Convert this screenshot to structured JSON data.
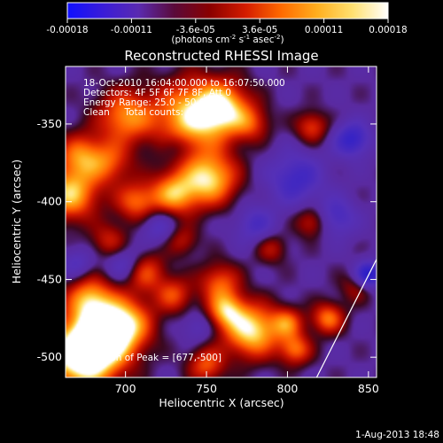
{
  "colorbar": {
    "ticks": [
      "-0.00018",
      "-0.00011",
      "-3.6e-05",
      "3.6e-05",
      "0.00011",
      "0.00018"
    ],
    "unit_main": "(photons cm",
    "unit_exp1": "-2",
    "unit_mid": " s",
    "unit_exp2": "-1",
    "unit_tail": " asec",
    "unit_exp3": "-2",
    "unit_close": ")",
    "stops": [
      "#1010ff",
      "#3a1cd8",
      "#5a2ab0",
      "#5a0a3a",
      "#8a0000",
      "#d41c00",
      "#ff6a00",
      "#ffae1e",
      "#ffe070",
      "#ffffff"
    ]
  },
  "chart_data": {
    "type": "heatmap",
    "title": "Reconstructed RHESSI Image",
    "xlabel": "Heliocentric X (arcsec)",
    "ylabel": "Heliocentric Y (arcsec)",
    "xlim": [
      663,
      855
    ],
    "ylim": [
      -513,
      -313
    ],
    "xticks": [
      700,
      750,
      800,
      850
    ],
    "yticks": [
      -350,
      -400,
      -450,
      -500
    ],
    "blobs": [
      {
        "x": 672,
        "y": -500,
        "r": 16,
        "v": 1.0
      },
      {
        "x": 684,
        "y": -488,
        "r": 14,
        "v": 0.9
      },
      {
        "x": 700,
        "y": -478,
        "r": 12,
        "v": 0.75
      },
      {
        "x": 678,
        "y": -462,
        "r": 10,
        "v": 0.7
      },
      {
        "x": 666,
        "y": -395,
        "r": 12,
        "v": 0.85
      },
      {
        "x": 672,
        "y": -370,
        "r": 10,
        "v": 0.6
      },
      {
        "x": 700,
        "y": -345,
        "r": 12,
        "v": 0.7
      },
      {
        "x": 740,
        "y": -345,
        "r": 16,
        "v": 0.85
      },
      {
        "x": 760,
        "y": -340,
        "r": 12,
        "v": 0.8
      },
      {
        "x": 752,
        "y": -385,
        "r": 12,
        "v": 0.9
      },
      {
        "x": 730,
        "y": -395,
        "r": 10,
        "v": 0.75
      },
      {
        "x": 707,
        "y": -400,
        "r": 9,
        "v": 0.6
      },
      {
        "x": 712,
        "y": -445,
        "r": 9,
        "v": 0.55
      },
      {
        "x": 730,
        "y": -460,
        "r": 8,
        "v": 0.5
      },
      {
        "x": 758,
        "y": -452,
        "r": 9,
        "v": 0.55
      },
      {
        "x": 778,
        "y": -483,
        "r": 12,
        "v": 0.95
      },
      {
        "x": 762,
        "y": -470,
        "r": 8,
        "v": 0.7
      },
      {
        "x": 800,
        "y": -478,
        "r": 7,
        "v": 0.55
      },
      {
        "x": 825,
        "y": -475,
        "r": 7,
        "v": 0.65
      },
      {
        "x": 805,
        "y": -495,
        "r": 7,
        "v": 0.6
      },
      {
        "x": 815,
        "y": -352,
        "r": 7,
        "v": 0.5
      },
      {
        "x": 815,
        "y": -413,
        "r": 7,
        "v": 0.45
      },
      {
        "x": 790,
        "y": -430,
        "r": 7,
        "v": 0.35
      },
      {
        "x": 778,
        "y": -350,
        "r": 8,
        "v": 0.4
      },
      {
        "x": 690,
        "y": -375,
        "r": 10,
        "v": 0.5
      },
      {
        "x": 690,
        "y": -425,
        "r": 8,
        "v": 0.4
      },
      {
        "x": 735,
        "y": -425,
        "r": 7,
        "v": 0.35
      },
      {
        "x": 750,
        "y": -505,
        "r": 8,
        "v": 0.55
      },
      {
        "x": 842,
        "y": -455,
        "r": 7,
        "v": 0.3
      },
      {
        "x": 840,
        "y": -360,
        "r": 8,
        "v": -0.55
      },
      {
        "x": 805,
        "y": -385,
        "r": 12,
        "v": -0.45
      },
      {
        "x": 830,
        "y": -410,
        "r": 9,
        "v": -0.4
      },
      {
        "x": 720,
        "y": -415,
        "r": 8,
        "v": -0.35
      },
      {
        "x": 850,
        "y": -447,
        "r": 6,
        "v": -0.7
      },
      {
        "x": 700,
        "y": -440,
        "r": 8,
        "v": -0.4
      },
      {
        "x": 670,
        "y": -440,
        "r": 7,
        "v": -0.3
      },
      {
        "x": 745,
        "y": -480,
        "r": 7,
        "v": -0.25
      },
      {
        "x": 780,
        "y": -415,
        "r": 9,
        "v": -0.35
      },
      {
        "x": 730,
        "y": -365,
        "r": 6,
        "v": -0.2
      }
    ],
    "limb": [
      [
        818,
        -513
      ],
      [
        855,
        -437
      ]
    ],
    "annotations": {
      "time": "18-Oct-2010 16:04:00.000 to 16:07:50.000",
      "detectors": "Detectors: 4F 5F 6F 7F 8F, Att 0",
      "energy": "Energy Range: 25.0 - 50.0 keV",
      "clean": "Clean     Total counts: 4.60E+03",
      "peak": "Location of Peak = [677,-500]"
    }
  },
  "footer_date": "1-Aug-2013 18:48"
}
